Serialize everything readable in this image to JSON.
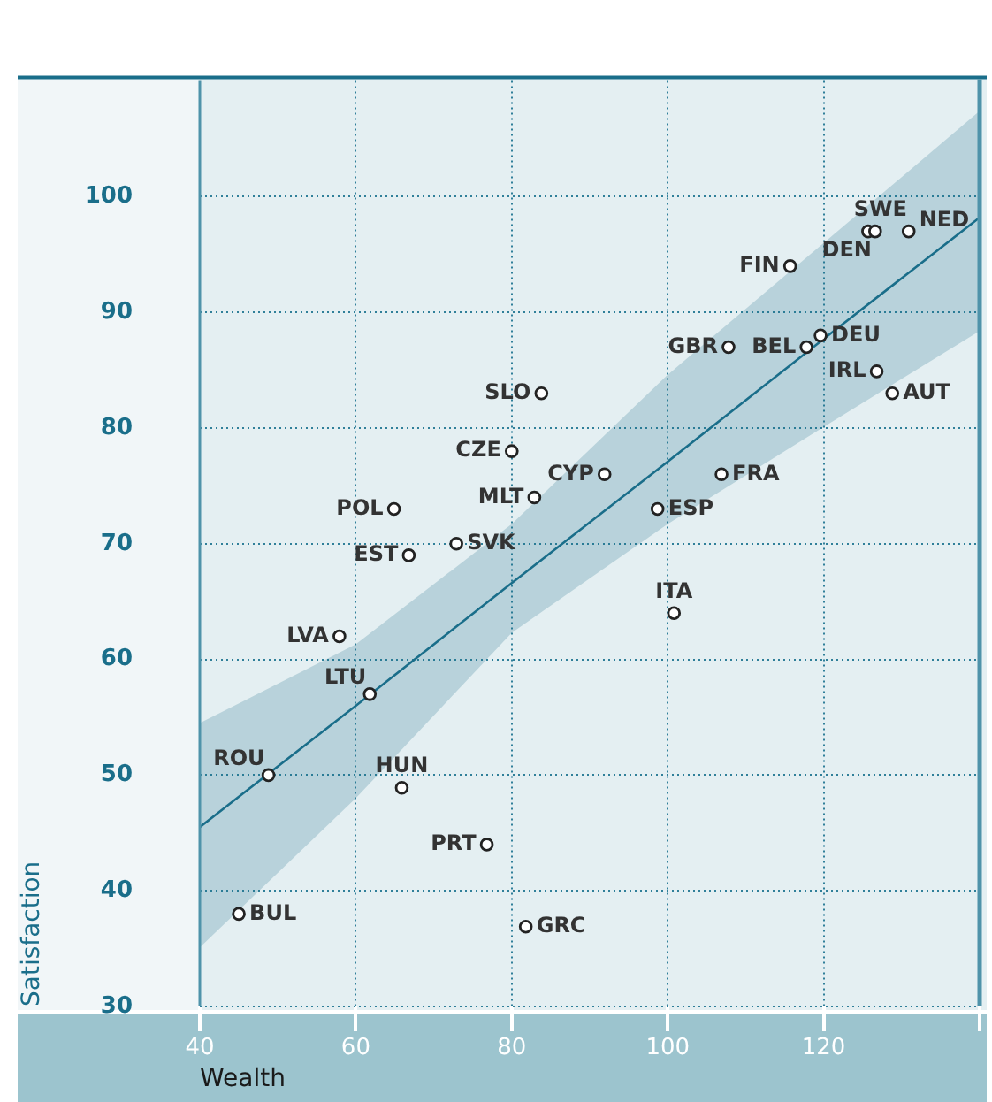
{
  "chart_data": {
    "type": "scatter",
    "xlabel": "Wealth",
    "ylabel": "Satisfaction",
    "xlim": [
      40,
      140
    ],
    "ylim": [
      30,
      110
    ],
    "xticks": [
      40,
      60,
      80,
      100,
      120,
      {
        "value": 140,
        "label": null
      }
    ],
    "yticks": [
      30,
      40,
      50,
      60,
      70,
      80,
      90,
      100
    ],
    "grid": true,
    "legend": false,
    "marker": "circle",
    "series": [
      {
        "color": "#222222",
        "x": [
          45,
          48.8,
          61.8,
          57.9,
          65.9,
          76.8,
          81.8,
          66.8,
          64.9,
          72.9,
          80,
          82.9,
          83.8,
          91.9,
          98.7,
          100.8,
          106.9,
          107.8,
          115.7,
          117.8,
          119.6,
          126.8,
          128.8,
          125.7,
          126.6,
          130.9
        ],
        "values": [
          38,
          50,
          57,
          62,
          48.9,
          44,
          36.9,
          69,
          73,
          70,
          78,
          74,
          83,
          76,
          73,
          64,
          76,
          87,
          94,
          87,
          88,
          84.9,
          83,
          97,
          97,
          97
        ]
      },
      {
        "type": "line",
        "marker": "none",
        "color": "#1a6e8a",
        "x": [
          40,
          60,
          80,
          100,
          120,
          140
        ],
        "values": [
          45.5,
          56,
          66.6,
          77.1,
          87.7,
          98.2
        ],
        "lower": [
          35.1,
          48,
          62.3,
          71.7,
          80.1,
          88.4
        ],
        "upper": [
          54.5,
          61.3,
          71.7,
          84.6,
          96,
          107.4
        ]
      }
    ],
    "annotations": [
      {
        "text": "BUL",
        "x": 45,
        "y": 38
      },
      {
        "text": "ROU",
        "x": 48.8,
        "y": 50
      },
      {
        "text": "LTU",
        "x": 61.8,
        "y": 57
      },
      {
        "text": "LVA",
        "x": 57.9,
        "y": 62
      },
      {
        "text": "HUN",
        "x": 65.9,
        "y": 48.9
      },
      {
        "text": "PRT",
        "x": 76.8,
        "y": 44
      },
      {
        "text": "GRC",
        "x": 81.8,
        "y": 36.9
      },
      {
        "text": "EST",
        "x": 66.8,
        "y": 69
      },
      {
        "text": "POL",
        "x": 64.9,
        "y": 73
      },
      {
        "text": "SVK",
        "x": 72.9,
        "y": 70
      },
      {
        "text": "CZE",
        "x": 80,
        "y": 78
      },
      {
        "text": "MLT",
        "x": 82.9,
        "y": 74
      },
      {
        "text": "SLO",
        "x": 83.8,
        "y": 83
      },
      {
        "text": "CYP",
        "x": 91.9,
        "y": 76
      },
      {
        "text": "ESP",
        "x": 98.7,
        "y": 73
      },
      {
        "text": "ITA",
        "x": 100.8,
        "y": 64
      },
      {
        "text": "FRA",
        "x": 106.9,
        "y": 76
      },
      {
        "text": "GBR",
        "x": 107.8,
        "y": 87
      },
      {
        "text": "FIN",
        "x": 115.7,
        "y": 94
      },
      {
        "text": "BEL",
        "x": 117.8,
        "y": 87
      },
      {
        "text": "DEU",
        "x": 119.6,
        "y": 88
      },
      {
        "text": "IRL",
        "x": 126.8,
        "y": 84.9
      },
      {
        "text": "AUT",
        "x": 128.8,
        "y": 83
      },
      {
        "text": "DEN",
        "x": 125.7,
        "y": 97
      },
      {
        "text": "SWE",
        "x": 126.6,
        "y": 97
      },
      {
        "text": "NED",
        "x": 130.9,
        "y": 97
      }
    ]
  }
}
